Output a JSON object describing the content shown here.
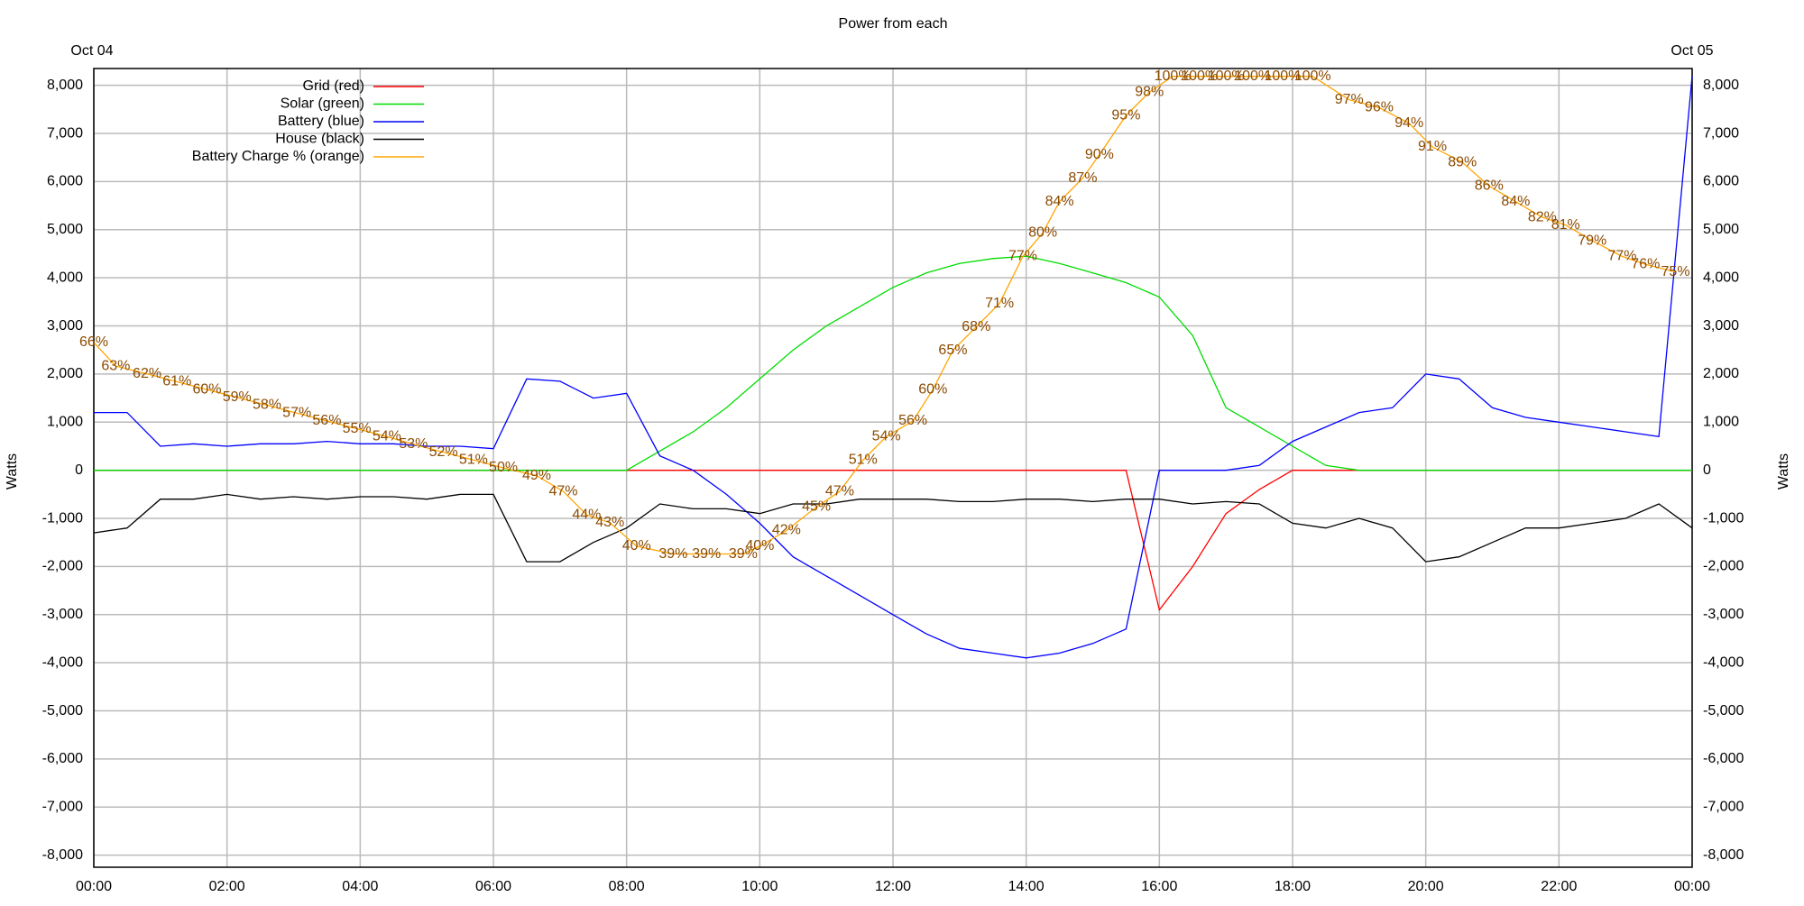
{
  "chart_data": {
    "type": "line",
    "title": "Power from each",
    "y_label": "Watts",
    "date_labels": [
      "Oct 04",
      "Oct 05"
    ],
    "grid": true,
    "legend": "upper left",
    "xlim": [
      0,
      24
    ],
    "xticks": [
      {
        "value": 0,
        "label": "00:00"
      },
      {
        "value": 2,
        "label": "02:00"
      },
      {
        "value": 4,
        "label": "04:00"
      },
      {
        "value": 6,
        "label": "06:00"
      },
      {
        "value": 8,
        "label": "08:00"
      },
      {
        "value": 10,
        "label": "10:00"
      },
      {
        "value": 12,
        "label": "12:00"
      },
      {
        "value": 14,
        "label": "14:00"
      },
      {
        "value": 16,
        "label": "16:00"
      },
      {
        "value": 18,
        "label": "18:00"
      },
      {
        "value": 20,
        "label": "20:00"
      },
      {
        "value": 22,
        "label": "22:00"
      },
      {
        "value": 24,
        "label": "00:00"
      }
    ],
    "ylim": [
      -8250,
      8350
    ],
    "yticks": [
      {
        "value": -8000,
        "label": "-8,000"
      },
      {
        "value": -7000,
        "label": "-7,000"
      },
      {
        "value": -6000,
        "label": "-6,000"
      },
      {
        "value": -5000,
        "label": "-5,000"
      },
      {
        "value": -4000,
        "label": "-4,000"
      },
      {
        "value": -3000,
        "label": "-3,000"
      },
      {
        "value": -2000,
        "label": "-2,000"
      },
      {
        "value": -1000,
        "label": "-1,000"
      },
      0,
      {
        "value": 1000,
        "label": "1,000"
      },
      {
        "value": 2000,
        "label": "2,000"
      },
      {
        "value": 3000,
        "label": "3,000"
      },
      {
        "value": 4000,
        "label": "4,000"
      },
      {
        "value": 5000,
        "label": "5,000"
      },
      {
        "value": 6000,
        "label": "6,000"
      },
      {
        "value": 7000,
        "label": "7,000"
      },
      {
        "value": 8000,
        "label": "8,000"
      }
    ],
    "y2lim": [
      -1,
      101
    ],
    "x": [
      0,
      0.5,
      1,
      1.5,
      2,
      2.5,
      3,
      3.5,
      4,
      4.5,
      5,
      5.5,
      6,
      6.5,
      7,
      7.5,
      8,
      8.5,
      9,
      9.5,
      10,
      10.5,
      11,
      11.5,
      12,
      12.5,
      13,
      13.5,
      14,
      14.5,
      15,
      15.5,
      16,
      16.5,
      17,
      17.5,
      18,
      18.5,
      19,
      19.5,
      20,
      20.5,
      21,
      21.5,
      22,
      22.5,
      23,
      23.5,
      24
    ],
    "series": [
      {
        "name": "Grid (red)",
        "color": "#ff0000",
        "values": [
          0,
          0,
          0,
          0,
          0,
          0,
          0,
          0,
          0,
          0,
          0,
          0,
          0,
          0,
          0,
          0,
          0,
          0,
          0,
          0,
          0,
          0,
          0,
          0,
          0,
          0,
          0,
          0,
          0,
          0,
          0,
          0,
          -2900,
          -2000,
          -900,
          -400,
          0,
          0,
          0,
          0,
          0,
          0,
          0,
          0,
          0,
          0,
          0,
          0,
          0
        ]
      },
      {
        "name": "Solar (green)",
        "color": "#00dd00",
        "values": [
          0,
          0,
          0,
          0,
          0,
          0,
          0,
          0,
          0,
          0,
          0,
          0,
          0,
          0,
          0,
          0,
          0,
          400,
          800,
          1300,
          1900,
          2500,
          3000,
          3400,
          3800,
          4100,
          4300,
          4400,
          4450,
          4300,
          4100,
          3900,
          3600,
          2800,
          1300,
          900,
          500,
          100,
          0,
          0,
          0,
          0,
          0,
          0,
          0,
          0,
          0,
          0,
          0
        ]
      },
      {
        "name": "Battery (blue)",
        "color": "#0000ff",
        "values": [
          1200,
          1200,
          500,
          550,
          500,
          550,
          550,
          600,
          550,
          550,
          500,
          500,
          450,
          1900,
          1850,
          1500,
          1600,
          300,
          0,
          -500,
          -1100,
          -1800,
          -2200,
          -2600,
          -3000,
          -3400,
          -3700,
          -3800,
          -3900,
          -3800,
          -3600,
          -3300,
          0,
          0,
          0,
          100,
          600,
          900,
          1200,
          1300,
          2000,
          1900,
          1300,
          1100,
          1000,
          900,
          800,
          700,
          8200
        ]
      },
      {
        "name": "House (black)",
        "color": "#000000",
        "values": [
          -1300,
          -1200,
          -600,
          -600,
          -500,
          -600,
          -550,
          -600,
          -550,
          -550,
          -600,
          -500,
          -500,
          -1900,
          -1900,
          -1500,
          -1200,
          -700,
          -800,
          -800,
          -900,
          -700,
          -700,
          -600,
          -600,
          -600,
          -650,
          -650,
          -600,
          -600,
          -650,
          -600,
          -600,
          -700,
          -650,
          -700,
          -1100,
          -1200,
          -1000,
          -1200,
          -1900,
          -1800,
          -1500,
          -1200,
          -1200,
          -1100,
          -1000,
          -700,
          -1200
        ]
      },
      {
        "name": "Battery Charge % (orange)",
        "color": "#ffa500",
        "label_color": "#8b4a00",
        "axis": "y2",
        "x": [
          0,
          0.33,
          0.8,
          1.25,
          1.7,
          2.15,
          2.6,
          3.05,
          3.5,
          3.95,
          4.4,
          4.8,
          5.25,
          5.7,
          6.15,
          6.65,
          7.05,
          7.4,
          7.75,
          8.15,
          8.7,
          9.2,
          9.75,
          10,
          10.4,
          10.85,
          11.2,
          11.55,
          11.9,
          12.3,
          12.6,
          12.9,
          13.25,
          13.6,
          13.95,
          14.25,
          14.5,
          14.85,
          15.1,
          15.5,
          15.85,
          16.2,
          16.6,
          17,
          17.4,
          17.85,
          18.3,
          18.85,
          19.3,
          19.75,
          20.1,
          20.55,
          20.95,
          21.35,
          21.75,
          22.1,
          22.5,
          22.95,
          23.3,
          23.75
        ],
        "values": [
          66,
          63,
          62,
          61,
          60,
          59,
          58,
          57,
          56,
          55,
          54,
          53,
          52,
          51,
          50,
          49,
          47,
          44,
          43,
          40,
          39,
          39,
          39,
          40,
          42,
          45,
          47,
          51,
          54,
          56,
          60,
          65,
          68,
          71,
          77,
          80,
          84,
          87,
          90,
          95,
          98,
          100,
          100,
          100,
          100,
          100,
          100,
          97,
          96,
          94,
          91,
          89,
          86,
          84,
          82,
          81,
          79,
          77,
          76,
          75
        ],
        "value_labels": [
          "66%",
          "63%",
          "62%",
          "61%",
          "60%",
          "59%",
          "58%",
          "57%",
          "56%",
          "55%",
          "54%",
          "53%",
          "52%",
          "51%",
          "50%",
          "49%",
          "47%",
          "44%",
          "43%",
          "40%",
          "39%",
          "39%",
          "39%",
          "40%",
          "42%",
          "45%",
          "47%",
          "51%",
          "54%",
          "56%",
          "60%",
          "65%",
          "68%",
          "71%",
          "77%",
          "80%",
          "84%",
          "87%",
          "90%",
          "95%",
          "98%",
          "100%",
          "100%",
          "100%",
          "100%",
          "100%",
          "100%",
          "97%",
          "96%",
          "94%",
          "91%",
          "89%",
          "86%",
          "84%",
          "82%",
          "81%",
          "79%",
          "77%",
          "76%",
          "75%"
        ]
      }
    ]
  }
}
